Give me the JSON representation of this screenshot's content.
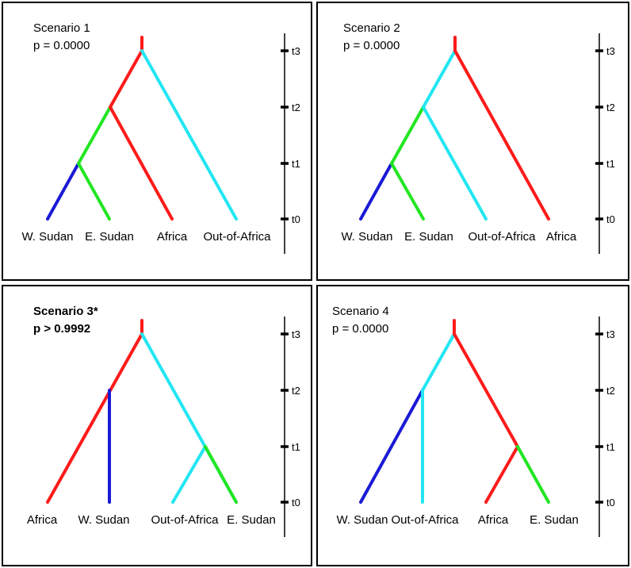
{
  "colors": {
    "red": "#ff1a1a",
    "cyan": "#22e6f2",
    "green": "#22e622",
    "blue": "#1a1ad6",
    "black": "#000000"
  },
  "time_ticks": [
    "t0",
    "t1",
    "t2",
    "t3"
  ],
  "scenarios": [
    {
      "title": "Scenario 1",
      "pvalue": "p = 0.0000",
      "bold": false,
      "leaves": [
        "W. Sudan",
        "E. Sudan",
        "Africa",
        "Out-of-Africa"
      ],
      "branches": [
        {
          "from": "root",
          "to": "n2",
          "color": "red"
        },
        {
          "from": "root",
          "to": "leaf4",
          "color": "cyan"
        },
        {
          "from": "n2",
          "to": "n1",
          "color": "green"
        },
        {
          "from": "n2",
          "to": "leaf3",
          "color": "red"
        },
        {
          "from": "n1",
          "to": "leaf1",
          "color": "blue"
        },
        {
          "from": "n1",
          "to": "leaf2",
          "color": "green"
        }
      ]
    },
    {
      "title": "Scenario 2",
      "pvalue": "p = 0.0000",
      "bold": false,
      "leaves": [
        "W. Sudan",
        "E. Sudan",
        "Out-of-Africa",
        "Africa"
      ],
      "branches": [
        {
          "from": "root",
          "to": "n2",
          "color": "cyan"
        },
        {
          "from": "root",
          "to": "leaf4",
          "color": "red"
        },
        {
          "from": "n2",
          "to": "n1",
          "color": "green"
        },
        {
          "from": "n2",
          "to": "leaf3",
          "color": "cyan"
        },
        {
          "from": "n1",
          "to": "leaf1",
          "color": "blue"
        },
        {
          "from": "n1",
          "to": "leaf2",
          "color": "green"
        }
      ]
    },
    {
      "title": "Scenario 3*",
      "pvalue": "p > 0.9992",
      "bold": true,
      "leaves": [
        "Africa",
        "W. Sudan",
        "Out-of-Africa",
        "E. Sudan"
      ],
      "branches": [
        {
          "from": "root",
          "to": "leaf1",
          "color": "red"
        },
        {
          "from": "nA",
          "to": "leaf2",
          "color": "blue"
        },
        {
          "from": "root",
          "to": "leaf4",
          "color": "cyan"
        },
        {
          "from": "nB",
          "to": "leaf3",
          "color": "cyan"
        },
        {
          "from": "nB",
          "to": "leaf4",
          "color": "green"
        }
      ]
    },
    {
      "title": "Scenario 4",
      "pvalue": "p = 0.0000",
      "bold": false,
      "leaves": [
        "W. Sudan",
        "Out-of-Africa",
        "Africa",
        "E. Sudan"
      ],
      "branches": [
        {
          "from": "root",
          "to": "nA",
          "color": "cyan"
        },
        {
          "from": "nA",
          "to": "leaf1",
          "color": "blue"
        },
        {
          "from": "nA",
          "to": "leaf2",
          "color": "cyan"
        },
        {
          "from": "root",
          "to": "nB",
          "color": "red"
        },
        {
          "from": "nB",
          "to": "leaf3",
          "color": "red"
        },
        {
          "from": "nB",
          "to": "leaf4",
          "color": "green"
        }
      ]
    }
  ]
}
